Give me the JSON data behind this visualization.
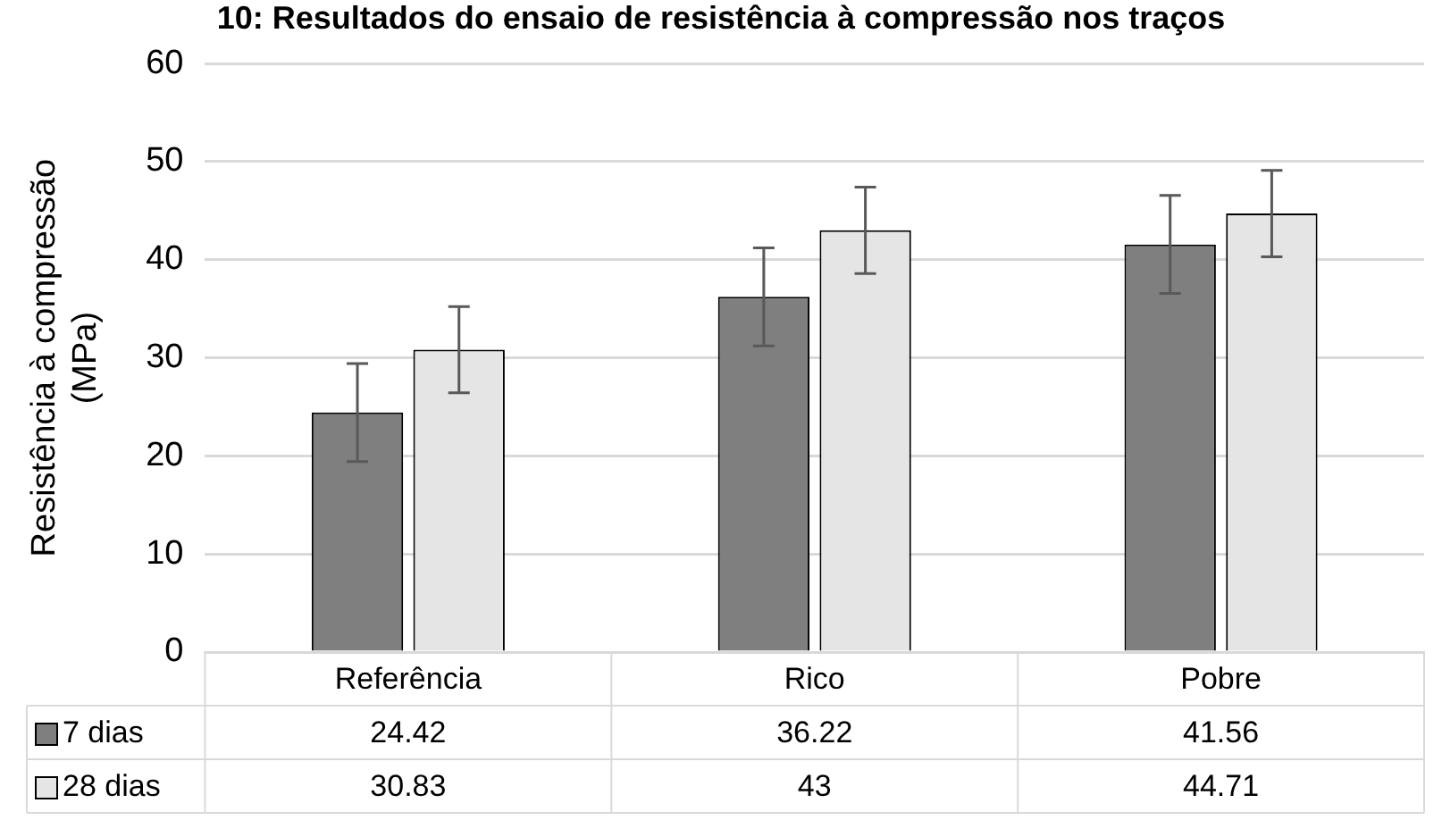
{
  "chart_data": {
    "type": "bar",
    "title": "10: Resultados do ensaio de resistência à compressão nos traços",
    "ylabel": "Resistência à compressão (MPa)",
    "categories": [
      "Referência",
      "Rico",
      "Pobre"
    ],
    "series": [
      {
        "name": "7 dias",
        "color": "#7f7f7f",
        "values": [
          24.42,
          36.22,
          41.56
        ],
        "errors": [
          5,
          5,
          5
        ]
      },
      {
        "name": "28 dias",
        "color": "#e5e5e5",
        "values": [
          30.83,
          43,
          44.71
        ],
        "errors": [
          4.4,
          4.4,
          4.4
        ]
      }
    ],
    "ylim": [
      0,
      60
    ],
    "yticks": [
      0,
      10,
      20,
      30,
      40,
      50,
      60
    ],
    "grid": "y",
    "legend": "bottom left",
    "data_labels": true
  }
}
